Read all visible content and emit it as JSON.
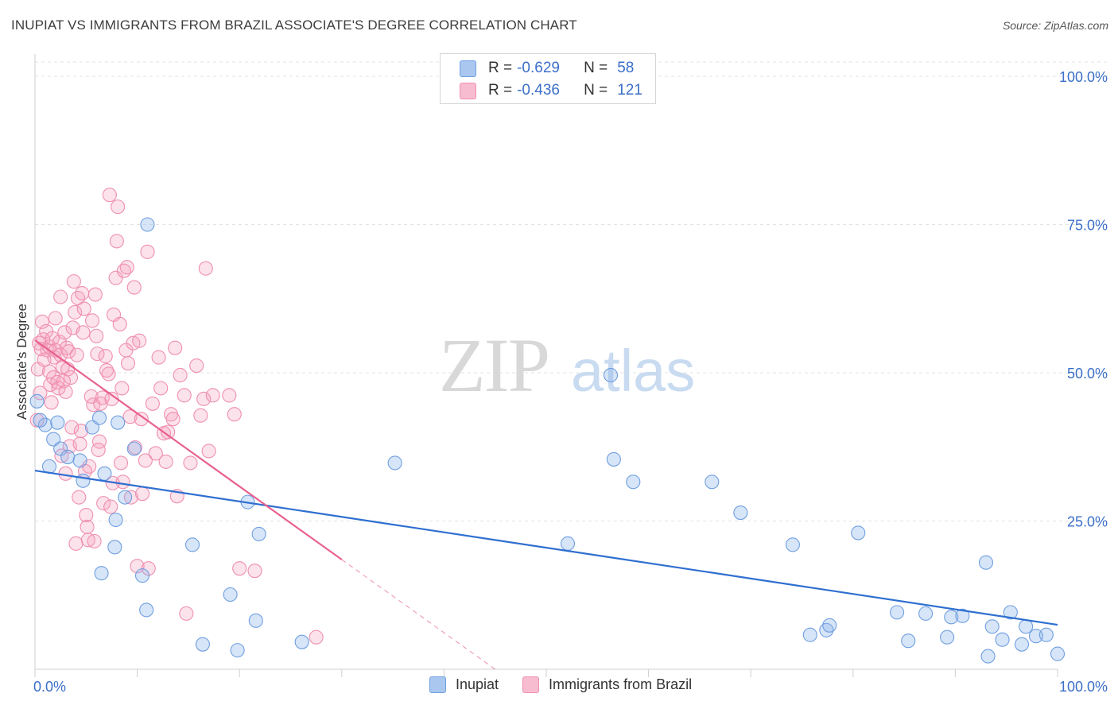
{
  "header": {
    "title": "INUPIAT VS IMMIGRANTS FROM BRAZIL ASSOCIATE'S DEGREE CORRELATION CHART",
    "source": "Source: ZipAtlas.com"
  },
  "legend": {
    "rows": [
      {
        "r_label": "R =",
        "r_value": "-0.629",
        "n_label": "N =",
        "n_value": "58",
        "color": "#aac7f0",
        "border": "#6f9fe0"
      },
      {
        "r_label": "R =",
        "r_value": "-0.436",
        "n_label": "N =",
        "n_value": "121",
        "color": "#f8bcd0",
        "border": "#ef8fb0"
      }
    ]
  },
  "bottom_legend": {
    "inupiat": "Inupiat",
    "brazil": "Immigrants from Brazil"
  },
  "colors": {
    "inupiat_fill": "rgba(140,180,235,0.35)",
    "inupiat_stroke": "#6f9fe0",
    "inupiat_line": "#2f6fd0",
    "brazil_fill": "rgba(245,160,190,0.30)",
    "brazil_stroke": "#ef8fb0",
    "brazil_line": "#e8608f",
    "axis_label": "#3b6fc8",
    "grid": "#e3e3e3"
  },
  "chart_data": {
    "type": "scatter",
    "title": "INUPIAT VS IMMIGRANTS FROM BRAZIL ASSOCIATE'S DEGREE CORRELATION CHART",
    "xlabel": "",
    "ylabel": "Associate's Degree",
    "xlim": [
      0,
      100
    ],
    "ylim": [
      0,
      100
    ],
    "x_tick_labels": [
      "0.0%",
      "100.0%"
    ],
    "y_tick_labels": [
      "25.0%",
      "50.0%",
      "75.0%",
      "100.0%"
    ],
    "y_ticks": [
      25,
      50,
      75,
      100
    ],
    "watermark": {
      "zip": "ZIP",
      "atlas": "atlas"
    },
    "series": [
      {
        "name": "Inupiat",
        "regression": {
          "x": [
            0,
            100
          ],
          "y": [
            33.5,
            7.5
          ],
          "dashed_to": null
        },
        "points": [
          [
            0.2,
            45.2
          ],
          [
            1.0,
            41.2
          ],
          [
            1.4,
            34.2
          ],
          [
            1.8,
            38.8
          ],
          [
            2.2,
            41.6
          ],
          [
            2.5,
            37.2
          ],
          [
            3.2,
            35.8
          ],
          [
            4.4,
            35.2
          ],
          [
            4.7,
            31.8
          ],
          [
            5.6,
            40.8
          ],
          [
            6.3,
            42.4
          ],
          [
            6.5,
            16.2
          ],
          [
            6.8,
            33.0
          ],
          [
            7.8,
            20.6
          ],
          [
            7.9,
            25.2
          ],
          [
            8.1,
            41.6
          ],
          [
            8.8,
            29.0
          ],
          [
            9.7,
            37.2
          ],
          [
            10.5,
            15.8
          ],
          [
            10.9,
            10.0
          ],
          [
            11.0,
            75.0
          ],
          [
            15.4,
            21.0
          ],
          [
            16.4,
            4.2
          ],
          [
            19.1,
            12.6
          ],
          [
            19.8,
            3.2
          ],
          [
            20.8,
            28.2
          ],
          [
            21.6,
            8.2
          ],
          [
            21.9,
            22.8
          ],
          [
            26.1,
            4.6
          ],
          [
            35.2,
            34.8
          ],
          [
            52.1,
            21.2
          ],
          [
            56.3,
            49.6
          ],
          [
            56.6,
            35.4
          ],
          [
            58.5,
            31.6
          ],
          [
            66.2,
            31.6
          ],
          [
            69.0,
            26.4
          ],
          [
            74.1,
            21.0
          ],
          [
            75.8,
            5.8
          ],
          [
            77.4,
            6.6
          ],
          [
            77.7,
            7.4
          ],
          [
            80.5,
            23.0
          ],
          [
            84.3,
            9.6
          ],
          [
            85.4,
            4.8
          ],
          [
            87.1,
            9.4
          ],
          [
            89.2,
            5.4
          ],
          [
            89.6,
            8.8
          ],
          [
            90.7,
            9.0
          ],
          [
            93.0,
            18.0
          ],
          [
            93.2,
            2.2
          ],
          [
            93.6,
            7.2
          ],
          [
            94.6,
            5.0
          ],
          [
            95.4,
            9.6
          ],
          [
            96.5,
            4.2
          ],
          [
            96.9,
            7.2
          ],
          [
            97.9,
            5.6
          ],
          [
            98.9,
            5.8
          ],
          [
            100.0,
            2.6
          ],
          [
            0.5,
            42.0
          ]
        ]
      },
      {
        "name": "Immigrants from Brazil",
        "regression": {
          "x": [
            0,
            30
          ],
          "y": [
            55.5,
            18.5
          ],
          "dashed_x": [
            30,
            45
          ],
          "dashed_y": [
            18.5,
            0
          ]
        },
        "points": [
          [
            0.2,
            42.0
          ],
          [
            0.3,
            50.6
          ],
          [
            0.4,
            55.0
          ],
          [
            0.6,
            54.0
          ],
          [
            0.7,
            58.6
          ],
          [
            0.8,
            55.6
          ],
          [
            0.9,
            52.2
          ],
          [
            1.1,
            57.0
          ],
          [
            1.2,
            53.8
          ],
          [
            1.4,
            54.4
          ],
          [
            1.4,
            50.2
          ],
          [
            1.5,
            48.0
          ],
          [
            1.7,
            55.8
          ],
          [
            1.8,
            49.2
          ],
          [
            1.9,
            52.6
          ],
          [
            2.0,
            53.8
          ],
          [
            2.0,
            59.2
          ],
          [
            2.2,
            48.4
          ],
          [
            2.3,
            47.4
          ],
          [
            2.4,
            55.2
          ],
          [
            2.5,
            53.0
          ],
          [
            2.5,
            62.8
          ],
          [
            2.7,
            51.0
          ],
          [
            2.8,
            48.6
          ],
          [
            2.9,
            56.8
          ],
          [
            3.0,
            46.8
          ],
          [
            3.1,
            54.2
          ],
          [
            3.2,
            50.6
          ],
          [
            3.3,
            53.6
          ],
          [
            3.4,
            37.6
          ],
          [
            3.5,
            49.2
          ],
          [
            3.7,
            57.6
          ],
          [
            3.8,
            65.4
          ],
          [
            3.9,
            60.2
          ],
          [
            4.1,
            53.0
          ],
          [
            4.2,
            62.6
          ],
          [
            4.4,
            38.0
          ],
          [
            4.5,
            40.2
          ],
          [
            4.6,
            63.4
          ],
          [
            4.7,
            56.8
          ],
          [
            4.8,
            60.8
          ],
          [
            4.9,
            33.4
          ],
          [
            5.0,
            26.0
          ],
          [
            5.1,
            24.0
          ],
          [
            5.2,
            21.8
          ],
          [
            5.3,
            34.2
          ],
          [
            5.5,
            46.0
          ],
          [
            5.6,
            58.8
          ],
          [
            5.7,
            44.6
          ],
          [
            5.8,
            21.6
          ],
          [
            5.9,
            63.2
          ],
          [
            6.0,
            56.2
          ],
          [
            6.1,
            53.2
          ],
          [
            6.3,
            38.4
          ],
          [
            6.4,
            44.8
          ],
          [
            6.6,
            45.8
          ],
          [
            6.7,
            28.0
          ],
          [
            6.9,
            52.8
          ],
          [
            7.0,
            50.4
          ],
          [
            7.2,
            49.8
          ],
          [
            7.3,
            80.0
          ],
          [
            7.5,
            45.6
          ],
          [
            7.6,
            31.4
          ],
          [
            7.7,
            59.8
          ],
          [
            7.9,
            66.0
          ],
          [
            8.0,
            72.2
          ],
          [
            8.1,
            78.0
          ],
          [
            8.3,
            58.2
          ],
          [
            8.4,
            34.8
          ],
          [
            8.5,
            47.4
          ],
          [
            8.7,
            67.2
          ],
          [
            8.9,
            53.8
          ],
          [
            9.0,
            67.8
          ],
          [
            9.1,
            51.6
          ],
          [
            9.3,
            42.6
          ],
          [
            9.4,
            29.0
          ],
          [
            9.6,
            55.0
          ],
          [
            9.7,
            64.4
          ],
          [
            9.8,
            37.4
          ],
          [
            10.0,
            17.4
          ],
          [
            10.2,
            55.4
          ],
          [
            10.4,
            42.2
          ],
          [
            10.5,
            29.6
          ],
          [
            10.8,
            35.2
          ],
          [
            11.0,
            70.4
          ],
          [
            11.1,
            17.0
          ],
          [
            11.5,
            44.8
          ],
          [
            12.1,
            52.6
          ],
          [
            12.3,
            47.4
          ],
          [
            12.6,
            39.8
          ],
          [
            12.8,
            35.0
          ],
          [
            13.0,
            40.0
          ],
          [
            13.3,
            43.0
          ],
          [
            13.5,
            42.2
          ],
          [
            13.7,
            54.2
          ],
          [
            13.9,
            29.2
          ],
          [
            14.2,
            49.6
          ],
          [
            14.6,
            46.2
          ],
          [
            14.8,
            9.4
          ],
          [
            15.2,
            34.8
          ],
          [
            15.8,
            51.2
          ],
          [
            16.2,
            42.8
          ],
          [
            16.5,
            45.6
          ],
          [
            16.7,
            67.6
          ],
          [
            17.0,
            36.8
          ],
          [
            17.4,
            46.2
          ],
          [
            19.0,
            46.2
          ],
          [
            19.5,
            43.0
          ],
          [
            20.0,
            17.0
          ],
          [
            21.5,
            16.6
          ],
          [
            27.5,
            5.4
          ],
          [
            3.6,
            40.8
          ],
          [
            4.0,
            21.2
          ],
          [
            6.2,
            37.0
          ],
          [
            7.4,
            27.4
          ],
          [
            8.6,
            31.6
          ],
          [
            2.6,
            36.0
          ],
          [
            1.6,
            45.0
          ],
          [
            3.0,
            33.0
          ],
          [
            4.3,
            29.0
          ],
          [
            11.8,
            36.4
          ],
          [
            0.5,
            46.6
          ]
        ]
      }
    ]
  }
}
